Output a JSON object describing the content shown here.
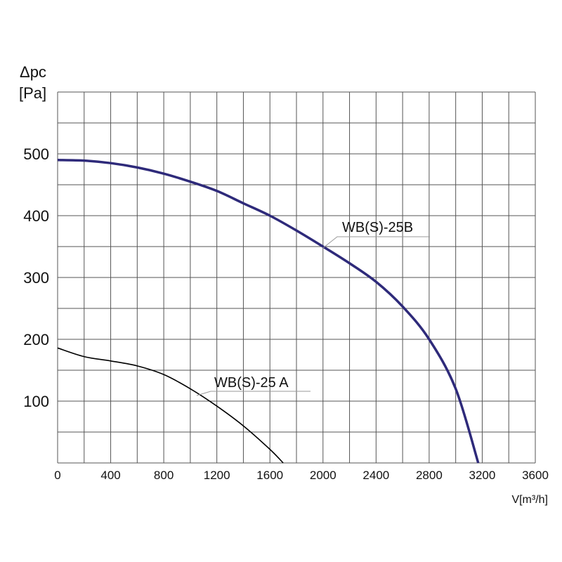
{
  "chart_data": {
    "type": "line",
    "title": "",
    "ylabel_line1": "Δpc",
    "ylabel_line2": "[Pa]",
    "xlabel": "V[m³/h]",
    "xlim": [
      0,
      3600
    ],
    "ylim": [
      0,
      600
    ],
    "grid": true,
    "x_ticks": [
      0,
      400,
      800,
      1200,
      1600,
      2000,
      2400,
      2800,
      3200,
      3600
    ],
    "y_ticks": [
      100,
      200,
      300,
      400,
      500
    ],
    "series": [
      {
        "name": "WB(S)-25B",
        "color": "#2e2a7a",
        "x": [
          0,
          200,
          400,
          600,
          800,
          1000,
          1200,
          1400,
          1600,
          1800,
          2000,
          2200,
          2400,
          2600,
          2800,
          3000,
          3170
        ],
        "y": [
          490,
          489,
          485,
          478,
          468,
          455,
          440,
          420,
          400,
          376,
          350,
          323,
          293,
          253,
          200,
          120,
          0
        ]
      },
      {
        "name": "WB(S)-25 A",
        "color": "#000000",
        "x": [
          0,
          200,
          400,
          600,
          800,
          1000,
          1200,
          1400,
          1600,
          1700
        ],
        "y": [
          186,
          172,
          165,
          157,
          143,
          120,
          92,
          60,
          22,
          0
        ]
      }
    ]
  }
}
